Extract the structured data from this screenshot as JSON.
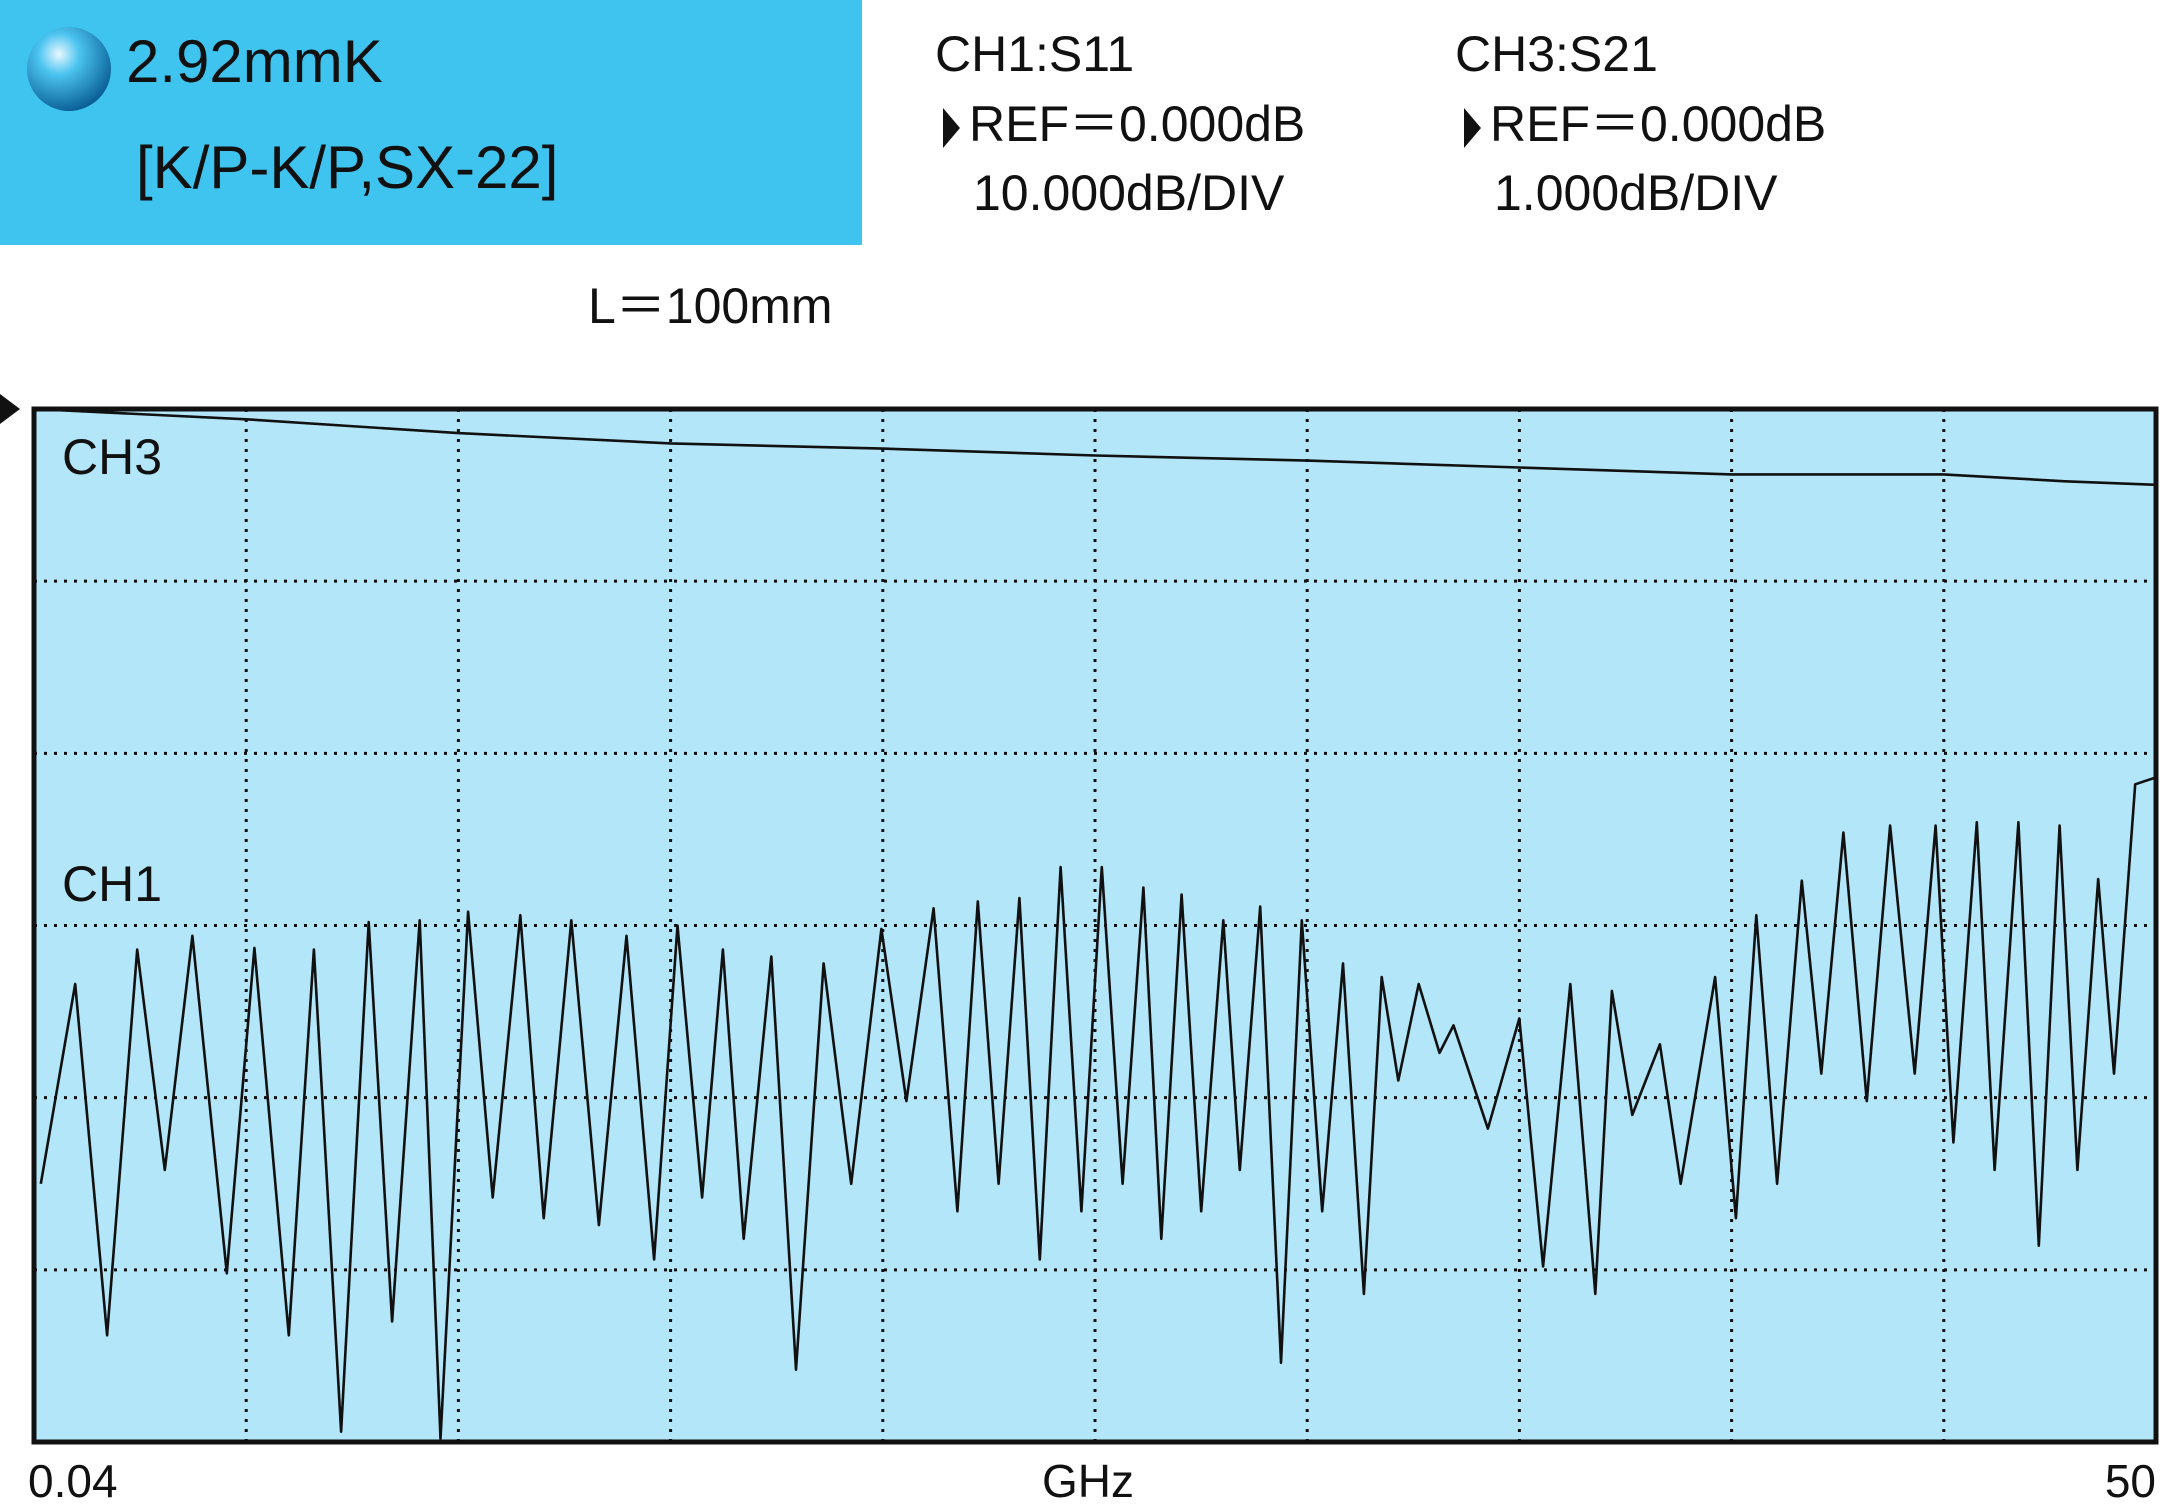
{
  "chart_data": {
    "type": "line",
    "title": "2.92mmK",
    "subtitle": "[K/P-K/P,SX-22]",
    "channel_info": [
      {
        "name": "CH1:S11",
        "ref": "REF＝0.000dB",
        "scale": "10.000dB/DIV"
      },
      {
        "name": "CH3:S21",
        "ref": "REF＝0.000dB",
        "scale": "1.000dB/DIV"
      }
    ],
    "annotation": "L＝100mm",
    "xlabel": "GHz",
    "xlim": [
      0.04,
      50
    ],
    "xticks": [
      0.04,
      50
    ],
    "x_divisions": 10,
    "ylim": [
      -60,
      0
    ],
    "yticks": [
      -60,
      -50,
      -40,
      -30,
      -20,
      -10,
      0
    ],
    "y2lim": [
      -6,
      0
    ],
    "grid": true,
    "series": [
      {
        "name": "CH1",
        "color": "#111111",
        "axis": "y",
        "x": [
          0.2,
          1.01,
          1.76,
          2.47,
          3.12,
          3.77,
          4.58,
          5.23,
          6.04,
          6.63,
          7.27,
          7.92,
          8.47,
          9.12,
          9.61,
          10.26,
          10.84,
          11.49,
          12.04,
          12.69,
          13.34,
          13.99,
          14.64,
          15.19,
          15.77,
          16.26,
          16.75,
          17.4,
          17.98,
          18.63,
          19.28,
          19.99,
          20.58,
          21.22,
          21.78,
          22.26,
          22.75,
          23.24,
          23.72,
          24.21,
          24.7,
          25.18,
          25.67,
          26.16,
          26.58,
          27.06,
          27.52,
          28.04,
          28.43,
          28.91,
          29.4,
          29.89,
          30.37,
          30.86,
          31.35,
          31.77,
          32.16,
          32.64,
          33.13,
          33.46,
          34.27,
          35.01,
          35.57,
          36.21,
          36.8,
          37.19,
          37.67,
          38.32,
          38.81,
          39.62,
          40.11,
          40.59,
          41.08,
          41.66,
          42.12,
          42.64,
          43.19,
          43.74,
          44.32,
          44.81,
          45.23,
          45.78,
          46.2,
          46.76,
          47.24,
          47.73,
          48.15,
          48.64,
          49.01,
          49.51,
          50
        ],
        "values": [
          -45.0,
          -33.4,
          -53.8,
          -31.4,
          -44.2,
          -30.6,
          -50.2,
          -31.3,
          -53.8,
          -31.4,
          -59.4,
          -29.8,
          -53.0,
          -29.7,
          -59.8,
          -29.2,
          -45.8,
          -29.4,
          -47.0,
          -29.7,
          -47.4,
          -30.6,
          -49.4,
          -30.0,
          -45.8,
          -31.4,
          -48.2,
          -31.8,
          -55.8,
          -32.2,
          -45.0,
          -30.2,
          -40.2,
          -29.0,
          -46.6,
          -28.6,
          -45.0,
          -28.4,
          -49.4,
          -26.6,
          -46.6,
          -26.6,
          -45.0,
          -27.8,
          -48.2,
          -28.2,
          -46.6,
          -29.7,
          -44.2,
          -28.9,
          -55.4,
          -29.7,
          -46.6,
          -32.2,
          -51.4,
          -33.0,
          -39.0,
          -33.4,
          -37.4,
          -35.8,
          -41.8,
          -35.4,
          -49.8,
          -33.4,
          -51.4,
          -33.8,
          -41.0,
          -36.9,
          -45.0,
          -33.0,
          -47.0,
          -29.4,
          -45.0,
          -27.4,
          -38.6,
          -24.6,
          -40.2,
          -24.2,
          -38.6,
          -24.2,
          -42.6,
          -24.0,
          -44.2,
          -24.0,
          -48.6,
          -24.2,
          -44.2,
          -27.3,
          -38.6,
          -21.8,
          -21.4
        ]
      },
      {
        "name": "CH3",
        "color": "#111111",
        "axis": "y2",
        "x": [
          0.04,
          5.04,
          10.03,
          15.03,
          20.02,
          25.02,
          30.02,
          35.01,
          40.01,
          45.0,
          47.86,
          50
        ],
        "values": [
          0,
          -0.06,
          -0.14,
          -0.2,
          -0.23,
          -0.27,
          -0.3,
          -0.34,
          -0.38,
          -0.38,
          -0.42,
          -0.44
        ]
      }
    ]
  }
}
